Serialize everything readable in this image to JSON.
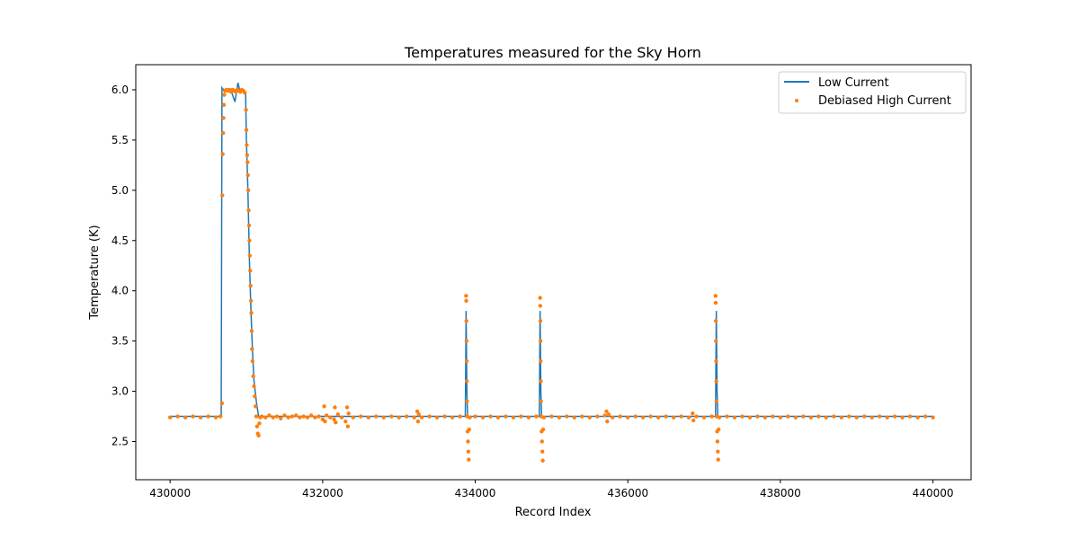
{
  "chart_data": {
    "type": "line",
    "title": "Temperatures measured for the Sky Horn",
    "xlabel": "Record Index",
    "ylabel": "Temperature (K)",
    "xlim": [
      429550,
      440500
    ],
    "ylim": [
      2.12,
      6.25
    ],
    "x_ticks": [
      430000,
      432000,
      434000,
      436000,
      438000,
      440000
    ],
    "y_ticks": [
      2.5,
      3.0,
      3.5,
      4.0,
      4.5,
      5.0,
      5.5,
      6.0
    ],
    "legend_position": "top-right",
    "grid": false,
    "series": [
      {
        "name": "Low Current",
        "style": "line",
        "color": "#1f77b4",
        "points": [
          [
            430000,
            2.75
          ],
          [
            430670,
            2.75
          ],
          [
            430680,
            6.02
          ],
          [
            430700,
            6.0
          ],
          [
            430750,
            6.01
          ],
          [
            430800,
            5.99
          ],
          [
            430850,
            5.88
          ],
          [
            430890,
            6.07
          ],
          [
            430920,
            5.97
          ],
          [
            430960,
            5.99
          ],
          [
            430990,
            5.96
          ],
          [
            431000,
            5.5
          ],
          [
            431020,
            5.0
          ],
          [
            431040,
            4.3
          ],
          [
            431060,
            3.8
          ],
          [
            431080,
            3.4
          ],
          [
            431100,
            3.1
          ],
          [
            431130,
            2.9
          ],
          [
            431160,
            2.75
          ],
          [
            431200,
            2.75
          ],
          [
            433870,
            2.75
          ],
          [
            433880,
            3.8
          ],
          [
            433890,
            3.0
          ],
          [
            433900,
            2.75
          ],
          [
            434840,
            2.75
          ],
          [
            434850,
            3.8
          ],
          [
            434860,
            3.0
          ],
          [
            434870,
            2.75
          ],
          [
            437150,
            2.75
          ],
          [
            437160,
            3.8
          ],
          [
            437170,
            3.0
          ],
          [
            437180,
            2.75
          ],
          [
            440000,
            2.75
          ]
        ]
      },
      {
        "name": "Debiased High Current",
        "style": "scatter",
        "color": "#ff7f0e",
        "points": [
          [
            430000,
            2.74
          ],
          [
            430100,
            2.75
          ],
          [
            430200,
            2.74
          ],
          [
            430300,
            2.75
          ],
          [
            430400,
            2.74
          ],
          [
            430500,
            2.75
          ],
          [
            430600,
            2.74
          ],
          [
            430660,
            2.75
          ],
          [
            430680,
            2.88
          ],
          [
            430685,
            4.95
          ],
          [
            430690,
            5.36
          ],
          [
            430695,
            5.57
          ],
          [
            430700,
            5.72
          ],
          [
            430705,
            5.85
          ],
          [
            430710,
            5.95
          ],
          [
            430720,
            5.99
          ],
          [
            430740,
            6.0
          ],
          [
            430760,
            5.99
          ],
          [
            430780,
            6.0
          ],
          [
            430800,
            5.98
          ],
          [
            430820,
            6.0
          ],
          [
            430840,
            5.99
          ],
          [
            430860,
            5.98
          ],
          [
            430880,
            6.0
          ],
          [
            430900,
            5.99
          ],
          [
            430920,
            5.98
          ],
          [
            430940,
            6.0
          ],
          [
            430960,
            5.99
          ],
          [
            430980,
            5.97
          ],
          [
            430995,
            5.8
          ],
          [
            431000,
            5.6
          ],
          [
            431005,
            5.45
          ],
          [
            431010,
            5.35
          ],
          [
            431015,
            5.28
          ],
          [
            431020,
            5.15
          ],
          [
            431025,
            5.0
          ],
          [
            431030,
            4.8
          ],
          [
            431035,
            4.65
          ],
          [
            431040,
            4.5
          ],
          [
            431045,
            4.35
          ],
          [
            431050,
            4.2
          ],
          [
            431055,
            4.05
          ],
          [
            431060,
            3.9
          ],
          [
            431065,
            3.78
          ],
          [
            431070,
            3.6
          ],
          [
            431075,
            3.42
          ],
          [
            431080,
            3.3
          ],
          [
            431090,
            3.15
          ],
          [
            431100,
            3.05
          ],
          [
            431110,
            2.95
          ],
          [
            431120,
            2.85
          ],
          [
            431130,
            2.75
          ],
          [
            431140,
            2.65
          ],
          [
            431150,
            2.58
          ],
          [
            431160,
            2.56
          ],
          [
            431170,
            2.68
          ],
          [
            431180,
            2.74
          ],
          [
            431200,
            2.75
          ],
          [
            431250,
            2.74
          ],
          [
            431300,
            2.76
          ],
          [
            431350,
            2.74
          ],
          [
            431400,
            2.75
          ],
          [
            431450,
            2.73
          ],
          [
            431500,
            2.76
          ],
          [
            431550,
            2.74
          ],
          [
            431600,
            2.75
          ],
          [
            431650,
            2.76
          ],
          [
            431700,
            2.74
          ],
          [
            431750,
            2.75
          ],
          [
            431800,
            2.74
          ],
          [
            431850,
            2.76
          ],
          [
            431900,
            2.74
          ],
          [
            431950,
            2.75
          ],
          [
            432000,
            2.72
          ],
          [
            432020,
            2.85
          ],
          [
            432030,
            2.7
          ],
          [
            432050,
            2.76
          ],
          [
            432100,
            2.74
          ],
          [
            432150,
            2.72
          ],
          [
            432160,
            2.84
          ],
          [
            432170,
            2.69
          ],
          [
            432200,
            2.77
          ],
          [
            432250,
            2.74
          ],
          [
            432300,
            2.7
          ],
          [
            432320,
            2.84
          ],
          [
            432330,
            2.65
          ],
          [
            432340,
            2.78
          ],
          [
            432400,
            2.74
          ],
          [
            432500,
            2.75
          ],
          [
            432600,
            2.74
          ],
          [
            432700,
            2.75
          ],
          [
            432800,
            2.74
          ],
          [
            432900,
            2.75
          ],
          [
            433000,
            2.74
          ],
          [
            433100,
            2.75
          ],
          [
            433200,
            2.74
          ],
          [
            433240,
            2.8
          ],
          [
            433250,
            2.7
          ],
          [
            433260,
            2.77
          ],
          [
            433300,
            2.74
          ],
          [
            433400,
            2.75
          ],
          [
            433500,
            2.74
          ],
          [
            433600,
            2.75
          ],
          [
            433700,
            2.74
          ],
          [
            433800,
            2.75
          ],
          [
            433880,
            3.95
          ],
          [
            433882,
            3.9
          ],
          [
            433884,
            3.7
          ],
          [
            433886,
            3.5
          ],
          [
            433888,
            3.3
          ],
          [
            433890,
            3.1
          ],
          [
            433892,
            2.9
          ],
          [
            433894,
            2.75
          ],
          [
            433900,
            2.6
          ],
          [
            433905,
            2.5
          ],
          [
            433910,
            2.4
          ],
          [
            433915,
            2.32
          ],
          [
            433920,
            2.62
          ],
          [
            433930,
            2.74
          ],
          [
            434000,
            2.75
          ],
          [
            434100,
            2.74
          ],
          [
            434200,
            2.75
          ],
          [
            434300,
            2.74
          ],
          [
            434400,
            2.75
          ],
          [
            434500,
            2.74
          ],
          [
            434600,
            2.75
          ],
          [
            434700,
            2.74
          ],
          [
            434800,
            2.75
          ],
          [
            434850,
            3.93
          ],
          [
            434852,
            3.85
          ],
          [
            434854,
            3.7
          ],
          [
            434856,
            3.5
          ],
          [
            434858,
            3.3
          ],
          [
            434860,
            3.1
          ],
          [
            434862,
            2.9
          ],
          [
            434865,
            2.75
          ],
          [
            434870,
            2.6
          ],
          [
            434875,
            2.5
          ],
          [
            434880,
            2.4
          ],
          [
            434885,
            2.31
          ],
          [
            434890,
            2.62
          ],
          [
            434900,
            2.74
          ],
          [
            435000,
            2.75
          ],
          [
            435100,
            2.74
          ],
          [
            435200,
            2.75
          ],
          [
            435300,
            2.74
          ],
          [
            435400,
            2.75
          ],
          [
            435500,
            2.74
          ],
          [
            435600,
            2.75
          ],
          [
            435700,
            2.76
          ],
          [
            435720,
            2.8
          ],
          [
            435730,
            2.7
          ],
          [
            435750,
            2.77
          ],
          [
            435800,
            2.74
          ],
          [
            435900,
            2.75
          ],
          [
            436000,
            2.74
          ],
          [
            436100,
            2.75
          ],
          [
            436200,
            2.74
          ],
          [
            436300,
            2.75
          ],
          [
            436400,
            2.74
          ],
          [
            436500,
            2.75
          ],
          [
            436600,
            2.74
          ],
          [
            436700,
            2.75
          ],
          [
            436800,
            2.74
          ],
          [
            436850,
            2.78
          ],
          [
            436860,
            2.71
          ],
          [
            436900,
            2.75
          ],
          [
            437000,
            2.74
          ],
          [
            437100,
            2.75
          ],
          [
            437150,
            3.95
          ],
          [
            437152,
            3.88
          ],
          [
            437154,
            3.7
          ],
          [
            437156,
            3.5
          ],
          [
            437158,
            3.3
          ],
          [
            437160,
            3.1
          ],
          [
            437162,
            2.9
          ],
          [
            437165,
            2.75
          ],
          [
            437170,
            2.6
          ],
          [
            437175,
            2.5
          ],
          [
            437180,
            2.4
          ],
          [
            437185,
            2.32
          ],
          [
            437190,
            2.62
          ],
          [
            437200,
            2.74
          ],
          [
            437300,
            2.75
          ],
          [
            437400,
            2.74
          ],
          [
            437500,
            2.75
          ],
          [
            437600,
            2.74
          ],
          [
            437700,
            2.75
          ],
          [
            437800,
            2.74
          ],
          [
            437900,
            2.75
          ],
          [
            438000,
            2.74
          ],
          [
            438100,
            2.75
          ],
          [
            438200,
            2.74
          ],
          [
            438300,
            2.75
          ],
          [
            438400,
            2.74
          ],
          [
            438500,
            2.75
          ],
          [
            438600,
            2.74
          ],
          [
            438700,
            2.75
          ],
          [
            438800,
            2.74
          ],
          [
            438900,
            2.75
          ],
          [
            439000,
            2.74
          ],
          [
            439100,
            2.75
          ],
          [
            439200,
            2.74
          ],
          [
            439300,
            2.75
          ],
          [
            439400,
            2.74
          ],
          [
            439500,
            2.75
          ],
          [
            439600,
            2.74
          ],
          [
            439700,
            2.75
          ],
          [
            439800,
            2.74
          ],
          [
            439900,
            2.75
          ],
          [
            440000,
            2.74
          ]
        ]
      }
    ]
  }
}
